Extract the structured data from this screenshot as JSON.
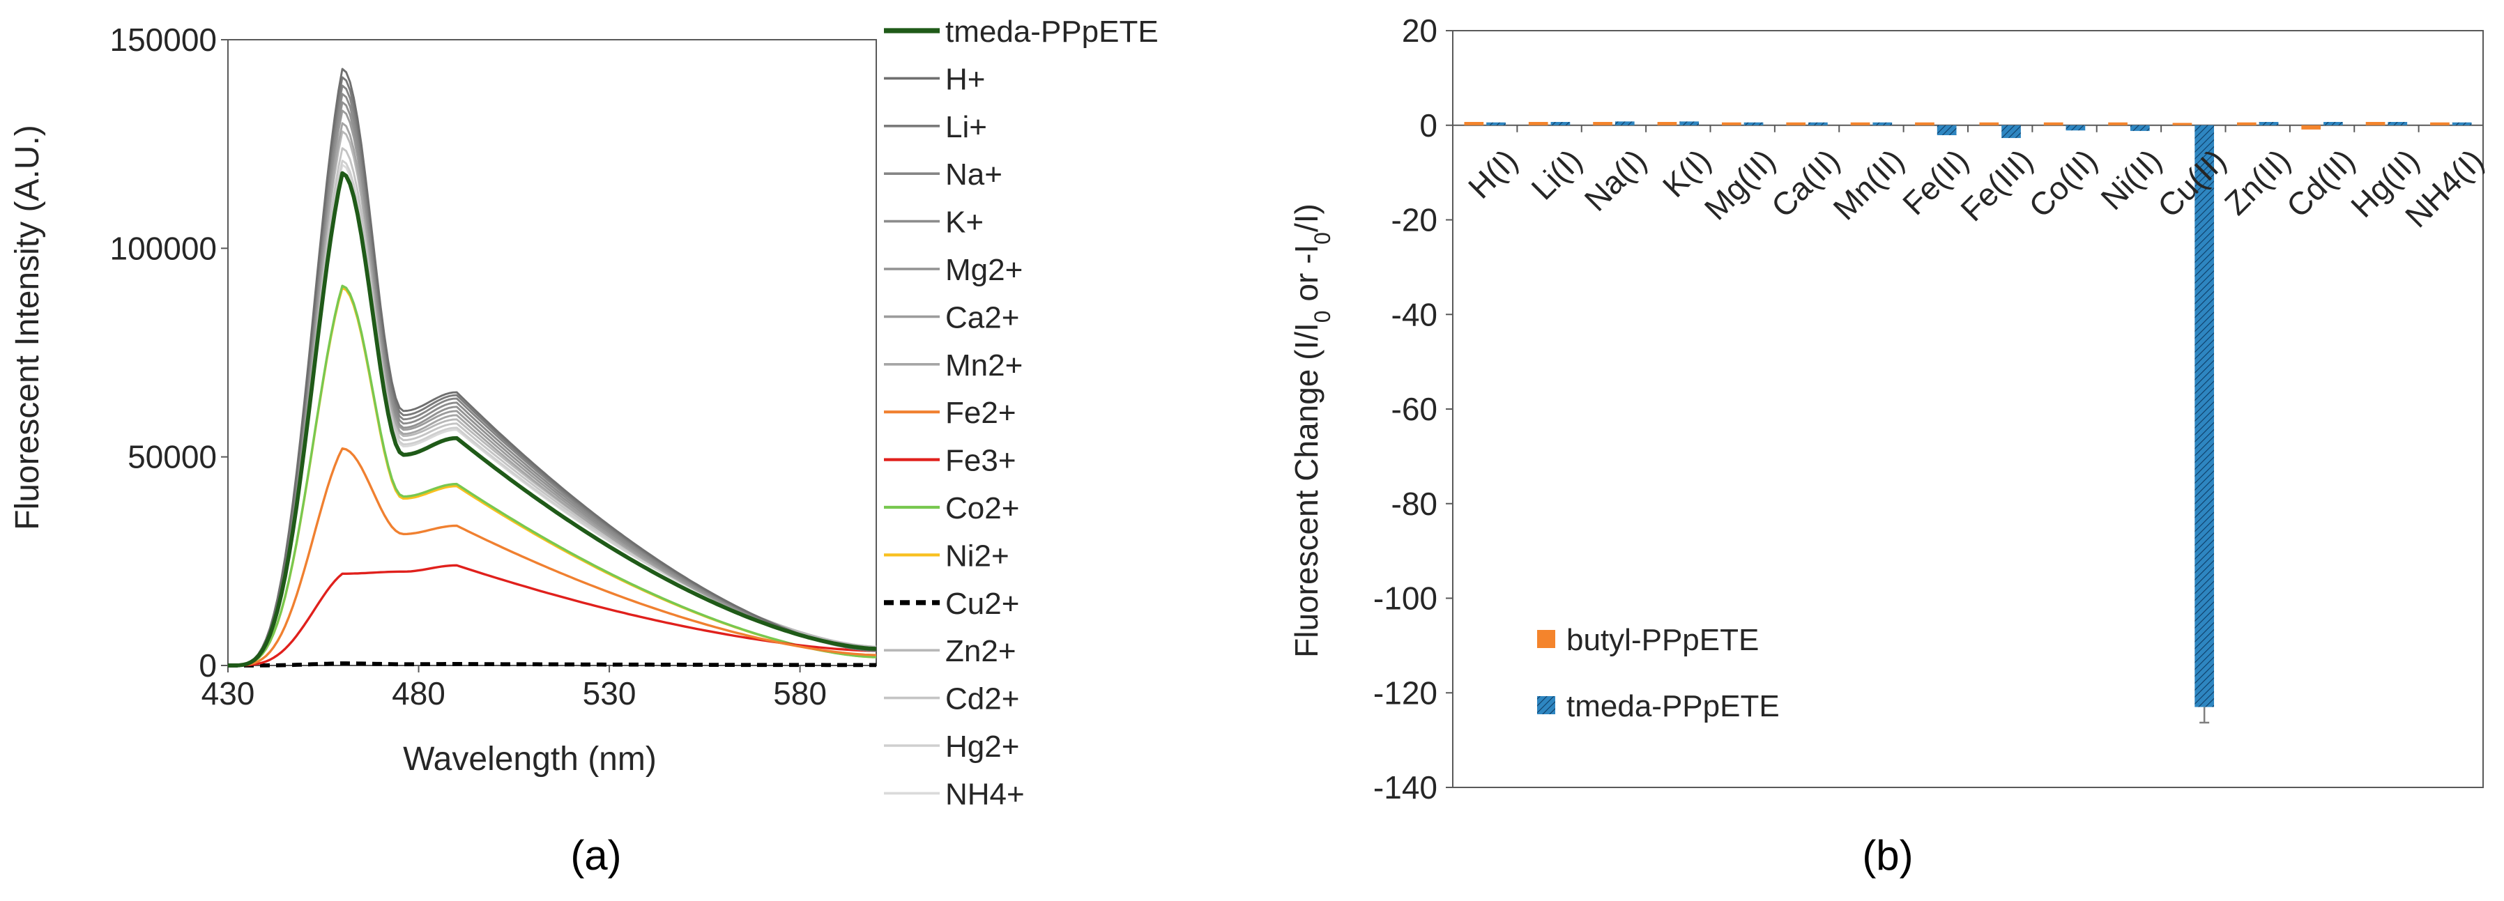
{
  "colors": {
    "axis": "#595959",
    "text": "#262626",
    "tmeda_line": "#1f5a18",
    "h": "#6f6f6f",
    "li": "#7a7a7a",
    "na": "#858585",
    "k": "#8c8c8c",
    "mg": "#929292",
    "ca": "#9c9c9c",
    "mn": "#a5a5a5",
    "fe2": "#f08030",
    "fe3": "#e0201c",
    "co": "#78c850",
    "ni": "#f8c020",
    "cu": "#000000",
    "zn": "#b8b8b8",
    "cd": "#c4c4c4",
    "hg": "#cfcfcf",
    "nh4": "#dadada",
    "bar_butyl": "#f4842c",
    "bar_tmeda": "#2e86c1"
  },
  "panel_labels": {
    "a": "(a)",
    "b": "(b)"
  },
  "chart_data": [
    {
      "type": "line",
      "xlabel": "Wavelength (nm)",
      "ylabel": "Fluorescent Intensity (A.U.)",
      "xlim": [
        430,
        600
      ],
      "ylim": [
        0,
        150000
      ],
      "xticks": [
        430,
        480,
        530,
        580
      ],
      "yticks": [
        0,
        50000,
        100000,
        150000
      ],
      "legend_position": "right",
      "series": [
        {
          "name": "tmeda-PPpETE",
          "color_key": "tmeda_line",
          "width": 2.4,
          "dash": "",
          "peak1": 118000,
          "dip": 50500,
          "peak2": 54500,
          "tail": 4000
        },
        {
          "name": "H+",
          "color_key": "h",
          "width": 1.2,
          "dash": "",
          "peak1": 143000,
          "dip": 61000,
          "peak2": 65500,
          "tail": 3500
        },
        {
          "name": "Li+",
          "color_key": "li",
          "width": 1.2,
          "dash": "",
          "peak1": 141000,
          "dip": 60000,
          "peak2": 64800,
          "tail": 3500
        },
        {
          "name": "Na+",
          "color_key": "na",
          "width": 1.2,
          "dash": "",
          "peak1": 139000,
          "dip": 59000,
          "peak2": 64000,
          "tail": 3500
        },
        {
          "name": "K+",
          "color_key": "k",
          "width": 1.2,
          "dash": "",
          "peak1": 137000,
          "dip": 58000,
          "peak2": 63000,
          "tail": 3500
        },
        {
          "name": "Mg2+",
          "color_key": "mg",
          "width": 1.2,
          "dash": "",
          "peak1": 135000,
          "dip": 57000,
          "peak2": 62000,
          "tail": 3500
        },
        {
          "name": "Ca2+",
          "color_key": "ca",
          "width": 1.2,
          "dash": "",
          "peak1": 133000,
          "dip": 56500,
          "peak2": 61000,
          "tail": 3500
        },
        {
          "name": "Mn2+",
          "color_key": "mn",
          "width": 1.2,
          "dash": "",
          "peak1": 130000,
          "dip": 55500,
          "peak2": 60000,
          "tail": 3500
        },
        {
          "name": "Fe2+",
          "color_key": "fe2",
          "width": 1.4,
          "dash": "",
          "peak1": 52000,
          "dip": 31500,
          "peak2": 33500,
          "tail": 2500
        },
        {
          "name": "Fe3+",
          "color_key": "fe3",
          "width": 1.4,
          "dash": "",
          "peak1": 22000,
          "dip": 22500,
          "peak2": 24000,
          "tail": 3500
        },
        {
          "name": "Co2+",
          "color_key": "co",
          "width": 1.4,
          "dash": "",
          "peak1": 91000,
          "dip": 40500,
          "peak2": 43500,
          "tail": 2000
        },
        {
          "name": "Ni2+",
          "color_key": "ni",
          "width": 1.4,
          "dash": "",
          "peak1": 90500,
          "dip": 40000,
          "peak2": 43000,
          "tail": 2000
        },
        {
          "name": "Cu2+",
          "color_key": "cu",
          "width": 2.4,
          "dash": "14,9",
          "peak1": 500,
          "dip": 300,
          "peak2": 350,
          "tail": 100
        },
        {
          "name": "Zn2+",
          "color_key": "zn",
          "width": 1.2,
          "dash": "",
          "peak1": 128000,
          "dip": 55000,
          "peak2": 59000,
          "tail": 4500
        },
        {
          "name": "Cd2+",
          "color_key": "cd",
          "width": 1.2,
          "dash": "",
          "peak1": 124000,
          "dip": 54000,
          "peak2": 58000,
          "tail": 4500
        },
        {
          "name": "Hg2+",
          "color_key": "hg",
          "width": 1.2,
          "dash": "",
          "peak1": 121000,
          "dip": 53000,
          "peak2": 57000,
          "tail": 4500
        },
        {
          "name": "NH4+",
          "color_key": "nh4",
          "width": 1.2,
          "dash": "",
          "peak1": 120000,
          "dip": 52500,
          "peak2": 56500,
          "tail": 4500
        }
      ]
    },
    {
      "type": "bar",
      "ylabel_main": "Fluorescent Change (I/I",
      "ylabel_sub0": "0",
      "ylabel_mid": " or -I",
      "ylabel_sub1": "0",
      "ylabel_end": "/I)",
      "ylim": [
        -140,
        20
      ],
      "yticks": [
        20,
        0,
        -20,
        -40,
        -60,
        -80,
        -100,
        -120,
        -140
      ],
      "categories": [
        "H(I)",
        "Li(I)",
        "Na(I)",
        "K(I)",
        "Mg(II)",
        "Ca(II)",
        "Mn(II)",
        "Fe(II)",
        "Fe(III)",
        "Co(II)",
        "Ni(II)",
        "Cu(II)",
        "Zn(II)",
        "Cd(II)",
        "Hg(II)",
        "NH4(I)"
      ],
      "series": [
        {
          "name": "butyl-PPpETE",
          "color_key": "bar_butyl",
          "pattern": "solid",
          "values": [
            0.7,
            0.7,
            0.7,
            0.7,
            0.6,
            0.6,
            0.6,
            0.6,
            0.6,
            0.6,
            0.6,
            0.5,
            0.6,
            -0.9,
            0.7,
            0.6
          ]
        },
        {
          "name": "tmeda-PPpETE",
          "color_key": "bar_tmeda",
          "pattern": "hatched",
          "values": [
            0.6,
            0.7,
            0.8,
            0.8,
            0.6,
            0.6,
            0.6,
            -2.1,
            -2.7,
            -1.1,
            -1.2,
            -123.0,
            0.7,
            0.7,
            0.7,
            0.6
          ],
          "errors": [
            0,
            0,
            0,
            0,
            0,
            0,
            0,
            0,
            0,
            0,
            0,
            3.3,
            0,
            0,
            0,
            0
          ]
        }
      ],
      "legend_position": "lower-left"
    }
  ]
}
